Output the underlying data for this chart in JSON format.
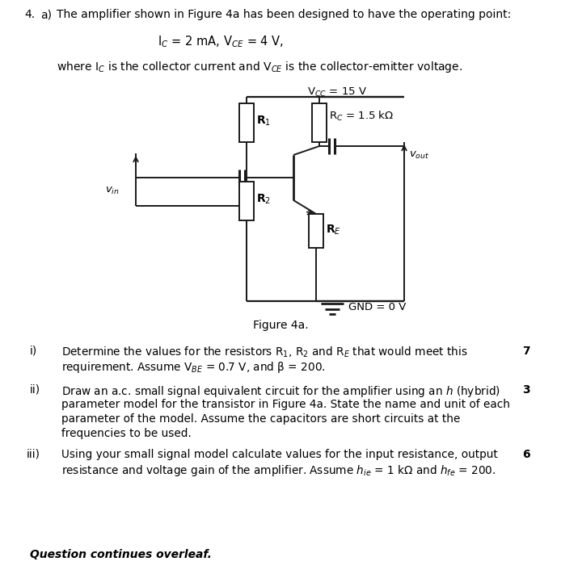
{
  "bg_color": "#ffffff",
  "text_color": "#000000",
  "fig_width": 6.94,
  "fig_height": 7.11,
  "dpi": 100,
  "title_text": "The amplifier shown in Figure 4a has been designed to have the operating point:",
  "equation": "I$_C$ = 2 mA, V$_{CE}$ = 4 V,",
  "where_text": "where I$_C$ is the collector current and V$_{CE}$ is the collector-emitter voltage.",
  "vcc_label": "V$_{CC}$ = 15 V",
  "rc_label": "R$_C$ = 1.5 kΩ",
  "r1_label": "R$_1$",
  "r2_label": "R$_2$",
  "re_label": "R$_E$",
  "vin_label": "$v_{in}$",
  "vout_label": "$v_{out}$",
  "gnd_label": "GND = 0 V",
  "figure_label": "Figure 4a.",
  "item_i_num": "i)",
  "item_i_line1": "Determine the values for the resistors R$_1$, R$_2$ and R$_E$ that would meet this",
  "item_i_line2": "requirement. Assume V$_{BE}$ = 0.7 V, and β = 200.",
  "item_i_mark": "7",
  "item_ii_num": "ii)",
  "item_ii_line1": "Draw an a.c. small signal equivalent circuit for the amplifier using an $h$ (hybrid)",
  "item_ii_line2": "parameter model for the transistor in Figure 4a. State the name and unit of each",
  "item_ii_line3": "parameter of the model. Assume the capacitors are short circuits at the",
  "item_ii_line4": "frequencies to be used.",
  "item_ii_mark": "3",
  "item_iii_num": "iii)",
  "item_iii_line1": "Using your small signal model calculate values for the input resistance, output",
  "item_iii_line2": "resistance and voltage gain of the amplifier. Assume $h_{ie}$ = 1 kΩ and $h_{fe}$ = 200.",
  "item_iii_mark": "6",
  "footer": "Question continues overleaf."
}
